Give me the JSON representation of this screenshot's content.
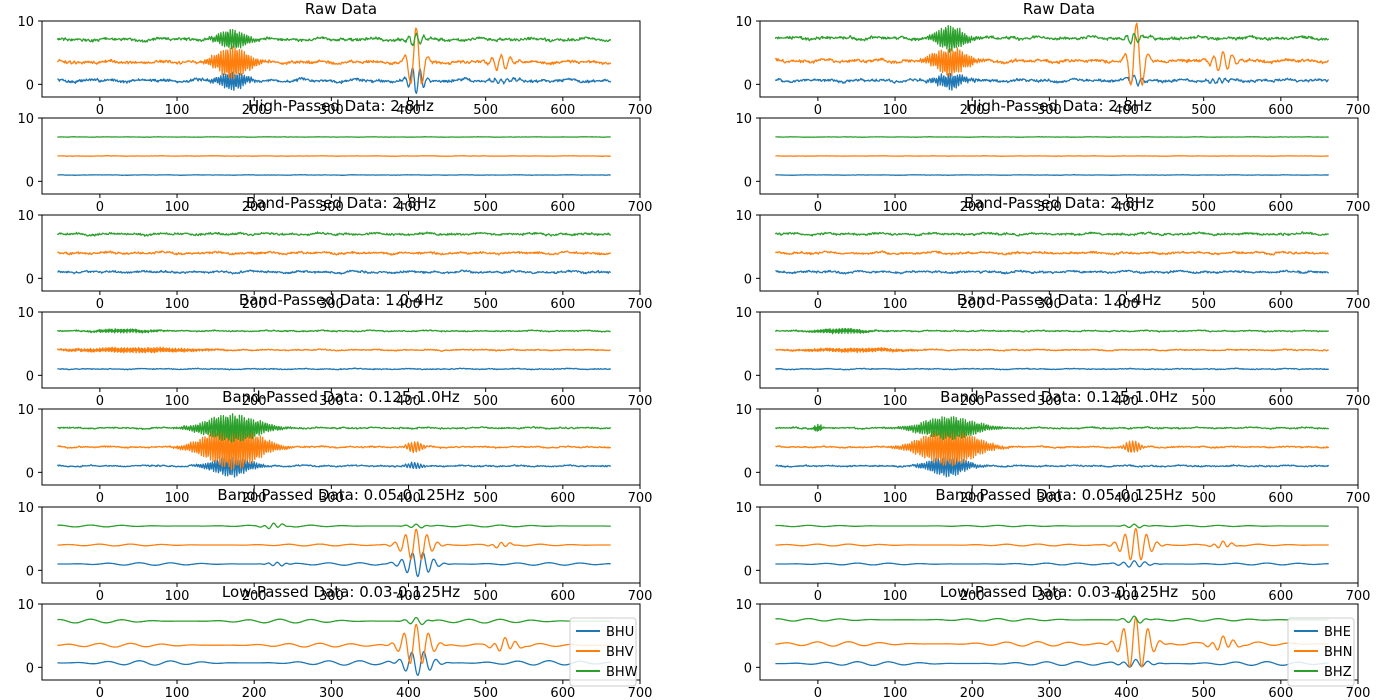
{
  "chart_data": [
    {
      "type": "line",
      "title": "Raw Data",
      "xlim": [
        -75,
        700
      ],
      "ylim": [
        -2,
        10
      ],
      "xticks": [
        0,
        100,
        200,
        300,
        400,
        500,
        600,
        700
      ],
      "yticks": [
        0,
        10
      ],
      "x_range": [
        -55,
        662
      ],
      "series": [
        {
          "label": "BHU",
          "color": "#1f77b4",
          "baseline": 0.6,
          "noise": 0.25,
          "events": [
            {
              "t": 172,
              "amp": 1.4,
              "dur": 15,
              "period": 3
            },
            {
              "t": 410,
              "amp": -2.2,
              "dur": 8,
              "period": 10
            },
            {
              "t": 520,
              "amp": 0.4,
              "dur": 12,
              "period": 8
            }
          ]
        },
        {
          "label": "BHV",
          "color": "#ff7f0e",
          "baseline": 3.5,
          "noise": 0.25,
          "events": [
            {
              "t": 172,
              "amp": 2.5,
              "dur": 18,
              "period": 3
            },
            {
              "t": 410,
              "amp": 5.5,
              "dur": 8,
              "period": 16
            },
            {
              "t": 520,
              "amp": 1.2,
              "dur": 12,
              "period": 12
            }
          ]
        },
        {
          "label": "BHW",
          "color": "#2ca02c",
          "baseline": 7.1,
          "noise": 0.25,
          "events": [
            {
              "t": 172,
              "amp": 1.6,
              "dur": 15,
              "period": 3
            },
            {
              "t": 410,
              "amp": 1.0,
              "dur": 8,
              "period": 10
            }
          ]
        }
      ]
    },
    {
      "type": "line",
      "title": "Raw Data",
      "xlim": [
        -75,
        700
      ],
      "ylim": [
        -2,
        10
      ],
      "xticks": [
        0,
        100,
        200,
        300,
        400,
        500,
        600,
        700
      ],
      "yticks": [
        0,
        10
      ],
      "x_range": [
        -55,
        662
      ],
      "series": [
        {
          "label": "BHE",
          "color": "#1f77b4",
          "baseline": 0.6,
          "noise": 0.25,
          "events": [
            {
              "t": 172,
              "amp": 1.2,
              "dur": 15,
              "period": 3
            },
            {
              "t": 410,
              "amp": 0.8,
              "dur": 8,
              "period": 10
            },
            {
              "t": 520,
              "amp": 0.4,
              "dur": 12,
              "period": 8
            }
          ]
        },
        {
          "label": "BHN",
          "color": "#ff7f0e",
          "baseline": 3.7,
          "noise": 0.25,
          "events": [
            {
              "t": 172,
              "amp": 2.2,
              "dur": 18,
              "period": 3
            },
            {
              "t": 413,
              "amp": 6.0,
              "dur": 8,
              "period": 16
            },
            {
              "t": 525,
              "amp": 1.5,
              "dur": 12,
              "period": 12
            }
          ]
        },
        {
          "label": "BHZ",
          "color": "#2ca02c",
          "baseline": 7.3,
          "noise": 0.25,
          "events": [
            {
              "t": 172,
              "amp": 2.0,
              "dur": 15,
              "period": 3
            },
            {
              "t": 410,
              "amp": 0.8,
              "dur": 8,
              "period": 10
            }
          ]
        }
      ]
    },
    {
      "type": "line",
      "title": "High-Passed Data: 2-8Hz",
      "xlim": [
        -75,
        700
      ],
      "ylim": [
        -2,
        10
      ],
      "xticks": [
        0,
        100,
        200,
        300,
        400,
        500,
        600,
        700
      ],
      "yticks": [
        0,
        10
      ],
      "x_range": [
        -55,
        662
      ],
      "series": [
        {
          "label": "BHU",
          "color": "#1f77b4",
          "baseline": 1.0,
          "noise": 0.03,
          "events": []
        },
        {
          "label": "BHV",
          "color": "#ff7f0e",
          "baseline": 4.0,
          "noise": 0.03,
          "events": []
        },
        {
          "label": "BHW",
          "color": "#2ca02c",
          "baseline": 7.0,
          "noise": 0.03,
          "events": []
        }
      ]
    },
    {
      "type": "line",
      "title": "High-Passed Data: 2-8Hz",
      "xlim": [
        -75,
        700
      ],
      "ylim": [
        -2,
        10
      ],
      "xticks": [
        0,
        100,
        200,
        300,
        400,
        500,
        600,
        700
      ],
      "yticks": [
        0,
        10
      ],
      "x_range": [
        -55,
        662
      ],
      "series": [
        {
          "label": "BHE",
          "color": "#1f77b4",
          "baseline": 1.0,
          "noise": 0.03,
          "events": []
        },
        {
          "label": "BHN",
          "color": "#ff7f0e",
          "baseline": 4.0,
          "noise": 0.03,
          "events": []
        },
        {
          "label": "BHZ",
          "color": "#2ca02c",
          "baseline": 7.0,
          "noise": 0.03,
          "events": []
        }
      ]
    },
    {
      "type": "line",
      "title": "Band-Passed Data: 2-8Hz",
      "xlim": [
        -75,
        700
      ],
      "ylim": [
        -2,
        10
      ],
      "xticks": [
        0,
        100,
        200,
        300,
        400,
        500,
        600,
        700
      ],
      "yticks": [
        0,
        10
      ],
      "x_range": [
        -55,
        662
      ],
      "series": [
        {
          "label": "BHU",
          "color": "#1f77b4",
          "baseline": 1.0,
          "noise": 0.18,
          "events": []
        },
        {
          "label": "BHV",
          "color": "#ff7f0e",
          "baseline": 4.0,
          "noise": 0.18,
          "events": []
        },
        {
          "label": "BHW",
          "color": "#2ca02c",
          "baseline": 7.0,
          "noise": 0.18,
          "events": []
        }
      ]
    },
    {
      "type": "line",
      "title": "Band-Passed Data: 2-8Hz",
      "xlim": [
        -75,
        700
      ],
      "ylim": [
        -2,
        10
      ],
      "xticks": [
        0,
        100,
        200,
        300,
        400,
        500,
        600,
        700
      ],
      "yticks": [
        0,
        10
      ],
      "x_range": [
        -55,
        662
      ],
      "series": [
        {
          "label": "BHE",
          "color": "#1f77b4",
          "baseline": 1.0,
          "noise": 0.18,
          "events": []
        },
        {
          "label": "BHN",
          "color": "#ff7f0e",
          "baseline": 4.0,
          "noise": 0.18,
          "events": []
        },
        {
          "label": "BHZ",
          "color": "#2ca02c",
          "baseline": 7.0,
          "noise": 0.18,
          "events": []
        }
      ]
    },
    {
      "type": "line",
      "title": "Band-Passed Data: 1.0-4Hz",
      "xlim": [
        -75,
        700
      ],
      "ylim": [
        -2,
        10
      ],
      "xticks": [
        0,
        100,
        200,
        300,
        400,
        500,
        600,
        700
      ],
      "yticks": [
        0,
        10
      ],
      "x_range": [
        -55,
        662
      ],
      "series": [
        {
          "label": "BHU",
          "color": "#1f77b4",
          "baseline": 1.0,
          "noise": 0.08,
          "events": []
        },
        {
          "label": "BHV",
          "color": "#ff7f0e",
          "baseline": 4.0,
          "noise": 0.1,
          "events": [
            {
              "t": 50,
              "amp": 0.4,
              "dur": 60,
              "period": 2
            }
          ]
        },
        {
          "label": "BHW",
          "color": "#2ca02c",
          "baseline": 7.0,
          "noise": 0.1,
          "events": [
            {
              "t": 30,
              "amp": 0.3,
              "dur": 30,
              "period": 2
            }
          ]
        }
      ]
    },
    {
      "type": "line",
      "title": "Band-Passed Data: 1.0-4Hz",
      "xlim": [
        -75,
        700
      ],
      "ylim": [
        -2,
        10
      ],
      "xticks": [
        0,
        100,
        200,
        300,
        400,
        500,
        600,
        700
      ],
      "yticks": [
        0,
        10
      ],
      "x_range": [
        -55,
        662
      ],
      "series": [
        {
          "label": "BHE",
          "color": "#1f77b4",
          "baseline": 1.0,
          "noise": 0.08,
          "events": []
        },
        {
          "label": "BHN",
          "color": "#ff7f0e",
          "baseline": 4.0,
          "noise": 0.1,
          "events": [
            {
              "t": 50,
              "amp": 0.3,
              "dur": 50,
              "period": 2
            }
          ]
        },
        {
          "label": "BHZ",
          "color": "#2ca02c",
          "baseline": 7.0,
          "noise": 0.1,
          "events": [
            {
              "t": 30,
              "amp": 0.4,
              "dur": 25,
              "period": 2
            }
          ]
        }
      ]
    },
    {
      "type": "line",
      "title": "Band-Passed Data: 0.125-1.0Hz",
      "xlim": [
        -75,
        700
      ],
      "ylim": [
        -2,
        10
      ],
      "xticks": [
        0,
        100,
        200,
        300,
        400,
        500,
        600,
        700
      ],
      "yticks": [
        0,
        10
      ],
      "x_range": [
        -55,
        662
      ],
      "series": [
        {
          "label": "BHU",
          "color": "#1f77b4",
          "baseline": 1.0,
          "noise": 0.12,
          "events": [
            {
              "t": 170,
              "amp": 1.6,
              "dur": 20,
              "period": 3
            },
            {
              "t": 408,
              "amp": 0.5,
              "dur": 8,
              "period": 4
            }
          ]
        },
        {
          "label": "BHV",
          "color": "#ff7f0e",
          "baseline": 4.0,
          "noise": 0.12,
          "events": [
            {
              "t": 172,
              "amp": 3.5,
              "dur": 30,
              "period": 3
            },
            {
              "t": 408,
              "amp": 0.9,
              "dur": 8,
              "period": 4
            }
          ]
        },
        {
          "label": "BHW",
          "color": "#2ca02c",
          "baseline": 7.0,
          "noise": 0.12,
          "events": [
            {
              "t": 172,
              "amp": 2.2,
              "dur": 30,
              "period": 3
            }
          ]
        }
      ]
    },
    {
      "type": "line",
      "title": "Band-Passed Data: 0.125-1.0Hz",
      "xlim": [
        -75,
        700
      ],
      "ylim": [
        -2,
        10
      ],
      "xticks": [
        0,
        100,
        200,
        300,
        400,
        500,
        600,
        700
      ],
      "yticks": [
        0,
        10
      ],
      "x_range": [
        -55,
        662
      ],
      "series": [
        {
          "label": "BHE",
          "color": "#1f77b4",
          "baseline": 1.0,
          "noise": 0.12,
          "events": [
            {
              "t": 168,
              "amp": 1.6,
              "dur": 20,
              "period": 3
            }
          ]
        },
        {
          "label": "BHN",
          "color": "#ff7f0e",
          "baseline": 4.0,
          "noise": 0.12,
          "events": [
            {
              "t": 170,
              "amp": 3.0,
              "dur": 30,
              "period": 3
            },
            {
              "t": 408,
              "amp": 1.0,
              "dur": 8,
              "period": 4
            }
          ]
        },
        {
          "label": "BHZ",
          "color": "#2ca02c",
          "baseline": 7.0,
          "noise": 0.12,
          "events": [
            {
              "t": 0,
              "amp": 0.6,
              "dur": 4,
              "period": 2
            },
            {
              "t": 170,
              "amp": 1.8,
              "dur": 30,
              "period": 3
            }
          ]
        }
      ]
    },
    {
      "type": "line",
      "title": "Band-Passed Data: 0.05-0.125Hz",
      "xlim": [
        -75,
        700
      ],
      "ylim": [
        -2,
        10
      ],
      "xticks": [
        0,
        100,
        200,
        300,
        400,
        500,
        600,
        700
      ],
      "yticks": [
        0,
        10
      ],
      "x_range": [
        -55,
        662
      ],
      "series": [
        {
          "label": "BHU",
          "color": "#1f77b4",
          "baseline": 1.0,
          "noise": 0.0,
          "wave": 0.2,
          "events": [
            {
              "t": 412,
              "amp": -2.0,
              "dur": 15,
              "period": 14
            },
            {
              "t": 230,
              "amp": 0.3,
              "dur": 10,
              "period": 12
            }
          ]
        },
        {
          "label": "BHV",
          "color": "#ff7f0e",
          "baseline": 4.0,
          "noise": 0.0,
          "wave": 0.15,
          "events": [
            {
              "t": 410,
              "amp": 2.5,
              "dur": 15,
              "period": 14
            },
            {
              "t": 520,
              "amp": 0.4,
              "dur": 10,
              "period": 12
            }
          ]
        },
        {
          "label": "BHW",
          "color": "#2ca02c",
          "baseline": 7.0,
          "noise": 0.0,
          "wave": 0.15,
          "events": [
            {
              "t": 225,
              "amp": 0.4,
              "dur": 10,
              "period": 12
            },
            {
              "t": 410,
              "amp": 0.3,
              "dur": 10,
              "period": 14
            }
          ]
        }
      ]
    },
    {
      "type": "line",
      "title": "Band-Passed Data: 0.05-0.125Hz",
      "xlim": [
        -75,
        700
      ],
      "ylim": [
        -2,
        10
      ],
      "xticks": [
        0,
        100,
        200,
        300,
        400,
        500,
        600,
        700
      ],
      "yticks": [
        0,
        10
      ],
      "x_range": [
        -55,
        662
      ],
      "series": [
        {
          "label": "BHE",
          "color": "#1f77b4",
          "baseline": 1.0,
          "noise": 0.0,
          "wave": 0.15,
          "events": [
            {
              "t": 410,
              "amp": 0.5,
              "dur": 15,
              "period": 14
            }
          ]
        },
        {
          "label": "BHN",
          "color": "#ff7f0e",
          "baseline": 4.0,
          "noise": 0.0,
          "wave": 0.15,
          "events": [
            {
              "t": 412,
              "amp": 2.6,
              "dur": 15,
              "period": 14
            },
            {
              "t": 525,
              "amp": 0.5,
              "dur": 10,
              "period": 12
            }
          ]
        },
        {
          "label": "BHZ",
          "color": "#2ca02c",
          "baseline": 7.0,
          "noise": 0.0,
          "wave": 0.1,
          "events": [
            {
              "t": 410,
              "amp": 0.3,
              "dur": 10,
              "period": 14
            }
          ]
        }
      ]
    },
    {
      "type": "line",
      "title": "Low-Passed Data: 0.03-0.125Hz",
      "xlim": [
        -75,
        700
      ],
      "ylim": [
        -2,
        10
      ],
      "xticks": [
        0,
        100,
        200,
        300,
        400,
        500,
        600,
        700
      ],
      "yticks": [
        0,
        10
      ],
      "x_range": [
        -55,
        662
      ],
      "legend": "bottom-right",
      "series": [
        {
          "label": "BHU",
          "color": "#1f77b4",
          "baseline": 0.7,
          "noise": 0.0,
          "wave": 0.35,
          "events": [
            {
              "t": 412,
              "amp": -2.0,
              "dur": 15,
              "period": 16
            }
          ]
        },
        {
          "label": "BHV",
          "color": "#ff7f0e",
          "baseline": 3.5,
          "noise": 0.0,
          "wave": 0.3,
          "events": [
            {
              "t": 410,
              "amp": 3.3,
              "dur": 15,
              "period": 16
            },
            {
              "t": 525,
              "amp": 1.0,
              "dur": 12,
              "period": 14
            }
          ]
        },
        {
          "label": "BHW",
          "color": "#2ca02c",
          "baseline": 7.3,
          "noise": 0.0,
          "wave": 0.3,
          "events": [
            {
              "t": 410,
              "amp": 0.6,
              "dur": 10,
              "period": 16
            }
          ]
        }
      ]
    },
    {
      "type": "line",
      "title": "Low-Passed Data: 0.03-0.125Hz",
      "xlim": [
        -75,
        700
      ],
      "ylim": [
        -2,
        10
      ],
      "xticks": [
        0,
        100,
        200,
        300,
        400,
        500,
        600,
        700
      ],
      "yticks": [
        0,
        10
      ],
      "x_range": [
        -55,
        662
      ],
      "legend": "bottom-right",
      "series": [
        {
          "label": "BHE",
          "color": "#1f77b4",
          "baseline": 0.6,
          "noise": 0.0,
          "wave": 0.3,
          "events": [
            {
              "t": 412,
              "amp": 0.6,
              "dur": 15,
              "period": 16
            }
          ]
        },
        {
          "label": "BHN",
          "color": "#ff7f0e",
          "baseline": 3.7,
          "noise": 0.0,
          "wave": 0.35,
          "events": [
            {
              "t": 412,
              "amp": 4.2,
              "dur": 15,
              "period": 16
            },
            {
              "t": 525,
              "amp": 1.0,
              "dur": 12,
              "period": 14
            }
          ]
        },
        {
          "label": "BHZ",
          "color": "#2ca02c",
          "baseline": 7.5,
          "noise": 0.0,
          "wave": 0.2,
          "events": [
            {
              "t": 410,
              "amp": 0.6,
              "dur": 10,
              "period": 16
            }
          ]
        }
      ]
    }
  ]
}
